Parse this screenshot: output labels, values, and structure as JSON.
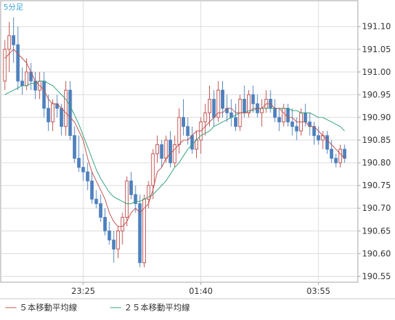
{
  "chart_data": {
    "type": "candlestick",
    "timeframe_label": "5分足",
    "colors": {
      "up": "#c0504d",
      "down": "#4f81bd",
      "ma5": "#c0504d",
      "ma25": "#2fa07a",
      "grid": "#dadada",
      "axis": "#a0a0a0",
      "text": "#333333",
      "title": "#3aa0d8"
    },
    "y_axis": {
      "ticks": [
        "190.55",
        "190.60",
        "190.65",
        "190.70",
        "190.75",
        "190.80",
        "190.85",
        "190.90",
        "190.95",
        "191.00",
        "191.05",
        "191.10"
      ],
      "range": [
        190.537,
        191.157
      ]
    },
    "x_axis": {
      "ticks": [
        {
          "label": "23:25",
          "index": 18
        },
        {
          "label": "01:40",
          "index": 45
        },
        {
          "label": "03:55",
          "index": 72
        }
      ]
    },
    "legend": [
      {
        "label": "５本移動平均線",
        "series": "ma5"
      },
      {
        "label": "２５本移動平均線",
        "series": "ma25"
      }
    ],
    "ohlc": [
      [
        190.98,
        191.07,
        190.96,
        191.05
      ],
      [
        191.05,
        191.11,
        191.0,
        191.08
      ],
      [
        191.08,
        191.12,
        191.02,
        191.06
      ],
      [
        191.06,
        191.1,
        190.96,
        190.98
      ],
      [
        190.98,
        191.01,
        190.95,
        190.97
      ],
      [
        190.97,
        191.03,
        190.96,
        191.0
      ],
      [
        191.0,
        191.02,
        190.96,
        190.98
      ],
      [
        190.98,
        191.0,
        190.94,
        190.96
      ],
      [
        190.96,
        191.0,
        190.94,
        190.98
      ],
      [
        190.98,
        191.0,
        190.9,
        190.92
      ],
      [
        190.92,
        190.95,
        190.87,
        190.89
      ],
      [
        190.89,
        190.94,
        190.87,
        190.93
      ],
      [
        190.93,
        190.95,
        190.9,
        190.92
      ],
      [
        190.92,
        190.93,
        190.86,
        190.88
      ],
      [
        190.88,
        190.98,
        190.86,
        190.96
      ],
      [
        190.96,
        190.98,
        190.85,
        190.86
      ],
      [
        190.86,
        190.88,
        190.8,
        190.81
      ],
      [
        190.81,
        190.86,
        190.78,
        190.79
      ],
      [
        190.79,
        190.82,
        190.76,
        190.78
      ],
      [
        190.78,
        190.8,
        190.74,
        190.76
      ],
      [
        190.76,
        190.78,
        190.71,
        190.72
      ],
      [
        190.72,
        190.74,
        190.7,
        190.71
      ],
      [
        190.71,
        190.73,
        190.67,
        190.68
      ],
      [
        190.68,
        190.7,
        190.64,
        190.65
      ],
      [
        190.65,
        190.67,
        190.62,
        190.63
      ],
      [
        190.63,
        190.65,
        190.58,
        190.61
      ],
      [
        190.61,
        190.66,
        190.59,
        190.65
      ],
      [
        190.65,
        190.69,
        190.62,
        190.68
      ],
      [
        190.68,
        190.77,
        190.66,
        190.76
      ],
      [
        190.76,
        190.78,
        190.72,
        190.73
      ],
      [
        190.73,
        190.75,
        190.69,
        190.71
      ],
      [
        190.71,
        190.73,
        190.57,
        190.58
      ],
      [
        190.58,
        190.73,
        190.57,
        190.72
      ],
      [
        190.72,
        190.76,
        190.7,
        190.75
      ],
      [
        190.75,
        190.83,
        190.72,
        190.82
      ],
      [
        190.82,
        190.86,
        190.8,
        190.84
      ],
      [
        190.84,
        190.85,
        190.79,
        190.81
      ],
      [
        190.81,
        190.86,
        190.8,
        190.85
      ],
      [
        190.85,
        190.87,
        190.79,
        190.8
      ],
      [
        190.8,
        190.86,
        190.79,
        190.84
      ],
      [
        190.84,
        190.92,
        190.82,
        190.9
      ],
      [
        190.9,
        190.94,
        190.86,
        190.88
      ],
      [
        190.88,
        190.9,
        190.84,
        190.86
      ],
      [
        190.86,
        190.88,
        190.82,
        190.83
      ],
      [
        190.83,
        190.87,
        190.81,
        190.85
      ],
      [
        190.85,
        190.9,
        190.82,
        190.89
      ],
      [
        190.89,
        190.93,
        190.86,
        190.91
      ],
      [
        190.91,
        190.97,
        190.88,
        190.94
      ],
      [
        190.94,
        190.96,
        190.88,
        190.9
      ],
      [
        190.9,
        190.98,
        190.89,
        190.96
      ],
      [
        190.96,
        190.98,
        190.9,
        190.92
      ],
      [
        190.92,
        190.95,
        190.89,
        190.91
      ],
      [
        190.91,
        190.94,
        190.88,
        190.9
      ],
      [
        190.9,
        190.93,
        190.87,
        190.88
      ],
      [
        190.88,
        190.95,
        190.87,
        190.94
      ],
      [
        190.94,
        190.97,
        190.9,
        190.91
      ],
      [
        190.91,
        190.96,
        190.9,
        190.95
      ],
      [
        190.95,
        190.97,
        190.91,
        190.93
      ],
      [
        190.93,
        190.95,
        190.9,
        190.91
      ],
      [
        190.91,
        190.94,
        190.88,
        190.92
      ],
      [
        190.92,
        190.96,
        190.91,
        190.94
      ],
      [
        190.94,
        190.96,
        190.91,
        190.92
      ],
      [
        190.92,
        190.94,
        190.89,
        190.9
      ],
      [
        190.9,
        190.92,
        190.87,
        190.89
      ],
      [
        190.89,
        190.93,
        190.88,
        190.92
      ],
      [
        190.92,
        190.93,
        190.88,
        190.89
      ],
      [
        190.89,
        190.92,
        190.86,
        190.88
      ],
      [
        190.88,
        190.9,
        190.85,
        190.87
      ],
      [
        190.87,
        190.92,
        190.86,
        190.91
      ],
      [
        190.91,
        190.93,
        190.88,
        190.89
      ],
      [
        190.89,
        190.91,
        190.86,
        190.88
      ],
      [
        190.88,
        190.89,
        190.84,
        190.86
      ],
      [
        190.86,
        190.88,
        190.84,
        190.85
      ],
      [
        190.85,
        190.87,
        190.83,
        190.86
      ],
      [
        190.86,
        190.87,
        190.82,
        190.83
      ],
      [
        190.83,
        190.85,
        190.8,
        190.81
      ],
      [
        190.81,
        190.82,
        190.79,
        190.8
      ],
      [
        190.8,
        190.84,
        190.79,
        190.83
      ],
      [
        190.83,
        190.84,
        190.8,
        190.81
      ]
    ],
    "ma5": [
      191.03,
      191.04,
      191.05,
      191.04,
      191.03,
      191.02,
      191.0,
      190.98,
      190.97,
      190.96,
      190.94,
      190.93,
      190.93,
      190.92,
      190.91,
      190.9,
      190.89,
      190.87,
      190.85,
      190.81,
      190.78,
      190.76,
      190.74,
      190.72,
      190.69,
      190.67,
      190.66,
      190.66,
      190.67,
      190.69,
      190.7,
      190.69,
      190.7,
      190.71,
      190.74,
      190.78,
      190.79,
      190.81,
      190.82,
      190.83,
      190.84,
      190.85,
      190.85,
      190.86,
      190.87,
      190.87,
      190.88,
      190.89,
      190.9,
      190.91,
      190.91,
      190.92,
      190.92,
      190.91,
      190.91,
      190.91,
      190.91,
      190.92,
      190.92,
      190.92,
      190.93,
      190.93,
      190.92,
      190.92,
      190.91,
      190.9,
      190.9,
      190.89,
      190.89,
      190.89,
      190.88,
      190.88,
      190.87,
      190.86,
      190.85,
      190.84,
      190.83,
      190.82,
      190.81
    ],
    "ma25": [
      190.95,
      190.955,
      190.96,
      190.965,
      190.97,
      190.97,
      190.975,
      190.975,
      190.98,
      190.98,
      190.975,
      190.97,
      190.96,
      190.95,
      190.94,
      190.925,
      190.905,
      190.885,
      190.86,
      190.835,
      190.81,
      190.785,
      190.765,
      190.75,
      190.735,
      190.725,
      190.72,
      190.715,
      190.71,
      190.71,
      190.715,
      190.715,
      190.72,
      190.725,
      190.73,
      190.74,
      190.75,
      190.76,
      190.775,
      190.79,
      190.8,
      190.815,
      190.83,
      190.84,
      190.85,
      190.86,
      190.865,
      190.87,
      190.88,
      190.885,
      190.89,
      190.895,
      190.9,
      190.905,
      190.91,
      190.91,
      190.915,
      190.915,
      190.92,
      190.92,
      190.92,
      190.92,
      190.92,
      190.92,
      190.92,
      190.92,
      190.915,
      190.915,
      190.91,
      190.91,
      190.91,
      190.905,
      190.9,
      190.9,
      190.895,
      190.89,
      190.885,
      190.88,
      190.87
    ]
  }
}
